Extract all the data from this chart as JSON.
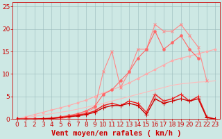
{
  "xlabel": "Vent moyen/en rafales ( km/h )",
  "xlim": [
    -0.5,
    23.5
  ],
  "ylim": [
    0,
    26
  ],
  "xticks": [
    0,
    1,
    2,
    3,
    4,
    5,
    6,
    7,
    8,
    9,
    10,
    11,
    12,
    13,
    14,
    15,
    16,
    17,
    18,
    19,
    20,
    21,
    22,
    23
  ],
  "yticks": [
    0,
    5,
    10,
    15,
    20,
    25
  ],
  "background_color": "#cde8e4",
  "grid_color": "#99bbbb",
  "lines": [
    {
      "x": [
        0,
        1,
        2,
        3,
        4,
        5,
        6,
        7,
        8,
        9,
        10,
        11,
        12,
        13,
        14,
        15,
        16,
        17,
        18,
        19,
        20,
        21,
        22,
        23
      ],
      "y": [
        0,
        0.3,
        0.6,
        0.9,
        1.2,
        1.5,
        1.8,
        2.2,
        2.6,
        3.0,
        3.5,
        4.0,
        4.5,
        5.0,
        5.5,
        6.0,
        6.5,
        7.0,
        7.5,
        7.8,
        8.0,
        8.2,
        8.3,
        8.5
      ],
      "color": "#ffbbbb",
      "lw": 0.8,
      "marker": null,
      "ms": 0
    },
    {
      "x": [
        0,
        1,
        2,
        3,
        4,
        5,
        6,
        7,
        8,
        9,
        10,
        11,
        12,
        13,
        14,
        15,
        16,
        17,
        18,
        19,
        20,
        21,
        22,
        23
      ],
      "y": [
        0,
        0.5,
        1.0,
        1.5,
        2.0,
        2.5,
        3.0,
        3.6,
        4.2,
        5.0,
        5.8,
        6.5,
        7.2,
        8.0,
        9.0,
        10.0,
        11.0,
        12.0,
        13.0,
        13.5,
        14.0,
        14.5,
        15.0,
        15.5
      ],
      "color": "#ffaaaa",
      "lw": 0.8,
      "marker": "o",
      "ms": 2
    },
    {
      "x": [
        0,
        1,
        2,
        3,
        4,
        5,
        6,
        7,
        8,
        9,
        10,
        11,
        12,
        13,
        14,
        15,
        16,
        17,
        18,
        19,
        20,
        21,
        22,
        23
      ],
      "y": [
        0,
        0,
        0,
        0,
        0,
        0,
        0.5,
        1.0,
        1.5,
        2.5,
        10.5,
        15.0,
        7.0,
        10.5,
        15.5,
        15.5,
        21.0,
        19.5,
        19.5,
        21.0,
        18.5,
        16.0,
        8.5,
        null
      ],
      "color": "#ff8888",
      "lw": 0.8,
      "marker": "x",
      "ms": 3
    },
    {
      "x": [
        0,
        1,
        2,
        3,
        4,
        5,
        6,
        7,
        8,
        9,
        10,
        11,
        12,
        13,
        14,
        15,
        16,
        17,
        18,
        19,
        20,
        21,
        22,
        23
      ],
      "y": [
        0,
        0,
        0,
        0,
        0.2,
        0.5,
        0.8,
        1.2,
        1.8,
        2.8,
        5.5,
        6.5,
        8.5,
        10.5,
        13.5,
        15.5,
        19.5,
        15.5,
        17.0,
        18.5,
        15.5,
        13.5,
        null,
        null
      ],
      "color": "#ff6666",
      "lw": 0.8,
      "marker": "o",
      "ms": 2.5
    },
    {
      "x": [
        0,
        1,
        2,
        3,
        4,
        5,
        6,
        7,
        8,
        9,
        10,
        11,
        12,
        13,
        14,
        15,
        16,
        17,
        18,
        19,
        20,
        21,
        22,
        23
      ],
      "y": [
        0,
        0,
        0,
        0.1,
        0.2,
        0.4,
        0.6,
        0.9,
        1.2,
        1.8,
        3.0,
        3.5,
        3.0,
        4.0,
        3.5,
        1.5,
        5.5,
        4.0,
        4.5,
        5.5,
        4.0,
        5.0,
        0.5,
        0.0
      ],
      "color": "#ee2222",
      "lw": 1.0,
      "marker": "+",
      "ms": 4
    },
    {
      "x": [
        0,
        1,
        2,
        3,
        4,
        5,
        6,
        7,
        8,
        9,
        10,
        11,
        12,
        13,
        14,
        15,
        16,
        17,
        18,
        19,
        20,
        21,
        22,
        23
      ],
      "y": [
        0,
        0,
        0,
        0.05,
        0.1,
        0.3,
        0.5,
        0.7,
        1.0,
        1.5,
        2.5,
        3.0,
        3.0,
        3.5,
        3.0,
        1.0,
        4.5,
        3.5,
        4.0,
        4.5,
        4.0,
        4.5,
        0.3,
        0.0
      ],
      "color": "#cc0000",
      "lw": 1.0,
      "marker": "+",
      "ms": 4
    }
  ],
  "xlabel_fontsize": 7.5,
  "tick_fontsize": 6.5,
  "text_color": "#cc0000",
  "axis_color": "#cc0000"
}
